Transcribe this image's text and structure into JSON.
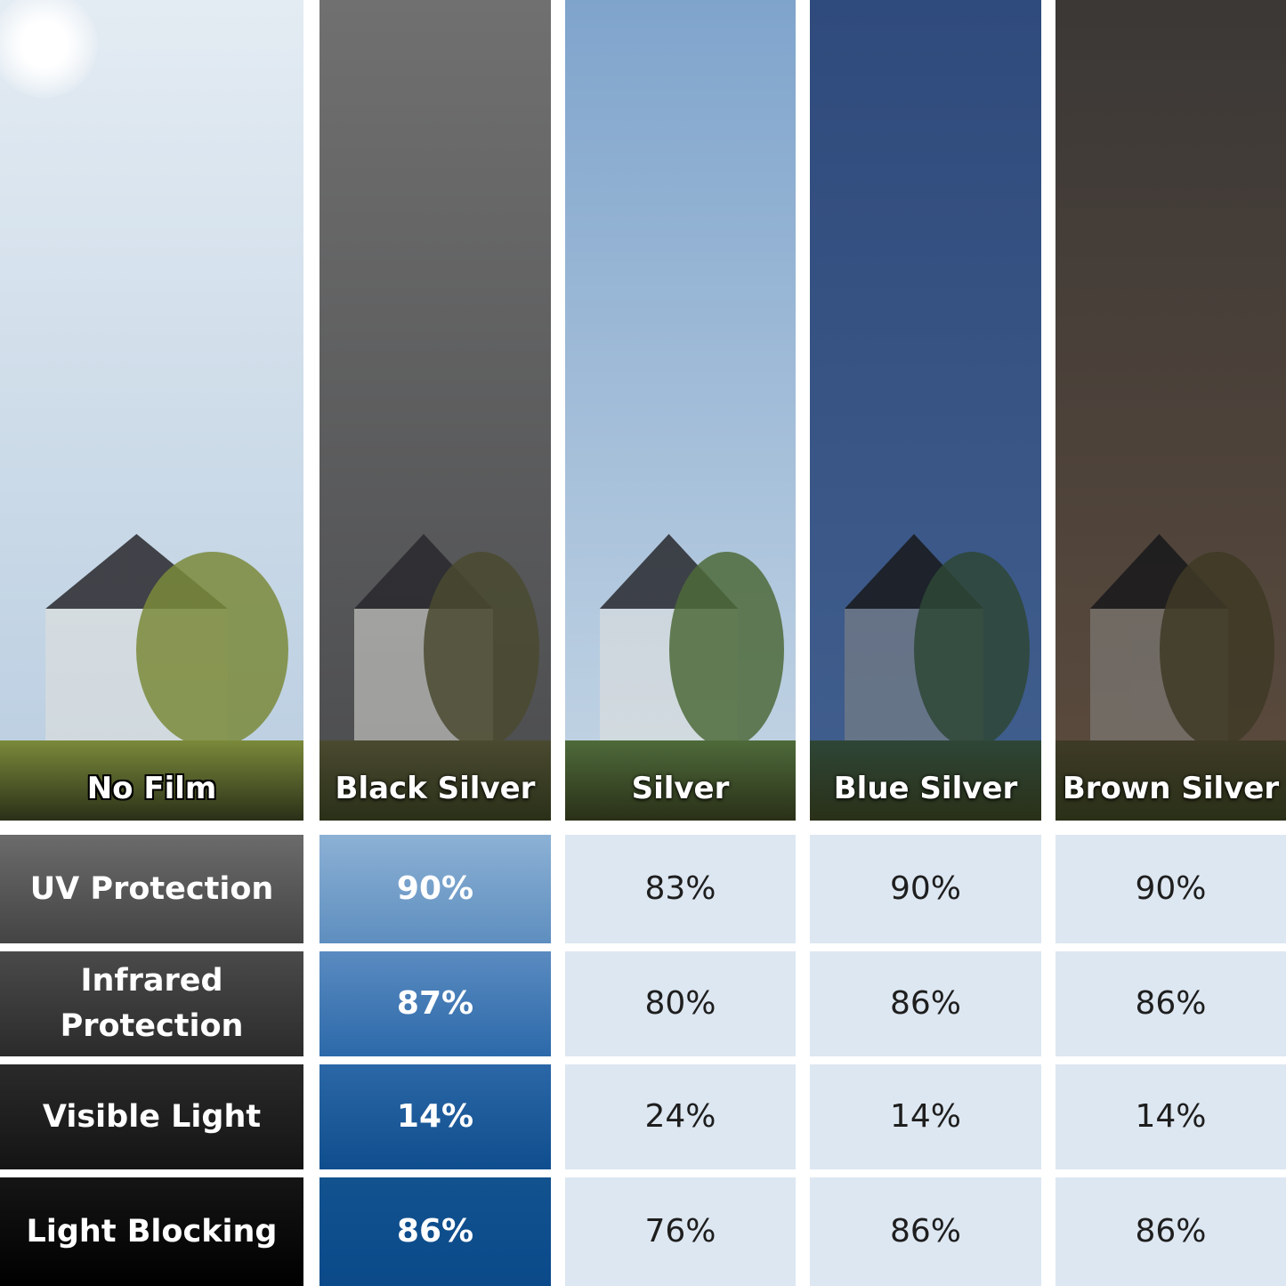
{
  "columns": [
    {
      "name": "No Film",
      "sky": [
        "#e4ecf3",
        "#b9cde0"
      ],
      "ground": "#7a8a3a"
    },
    {
      "name": "Black Silver",
      "sky": [
        "#707070",
        "#4b4c4e"
      ],
      "ground": "#4a4a30"
    },
    {
      "name": "Silver",
      "sky": [
        "#7fa4cc",
        "#c5d6e5"
      ],
      "ground": "#4e6a3a"
    },
    {
      "name": "Blue Silver",
      "sky": [
        "#2f4a7c",
        "#415f8e"
      ],
      "ground": "#2e4636"
    },
    {
      "name": "Brown Silver",
      "sky": [
        "#3b3836",
        "#5c4b3d"
      ],
      "ground": "#3e3a26"
    }
  ],
  "rows": [
    {
      "label": "UV Protection",
      "values": [
        "90%",
        "83%",
        "90%",
        "90%"
      ]
    },
    {
      "label": "Infrared Protection",
      "values": [
        "87%",
        "80%",
        "86%",
        "86%"
      ]
    },
    {
      "label": "Visible Light",
      "values": [
        "14%",
        "24%",
        "14%",
        "14%"
      ]
    },
    {
      "label": "Light Blocking",
      "values": [
        "86%",
        "76%",
        "86%",
        "86%"
      ]
    }
  ],
  "colors": {
    "label_gradients": [
      [
        "#6b6b6b",
        "#444444"
      ],
      [
        "#4a4a4a",
        "#2b2b2b"
      ],
      [
        "#2a2a2a",
        "#141414"
      ],
      [
        "#151515",
        "#000000"
      ]
    ],
    "highlight_gradients": [
      [
        "#8cb1d5",
        "#5e8ebf"
      ],
      [
        "#5a8bc0",
        "#2c69aa"
      ],
      [
        "#2b67a7",
        "#0f4e8e"
      ],
      [
        "#12528f",
        "#0b4a8a"
      ]
    ],
    "plain_cell": "#dde7f1"
  }
}
